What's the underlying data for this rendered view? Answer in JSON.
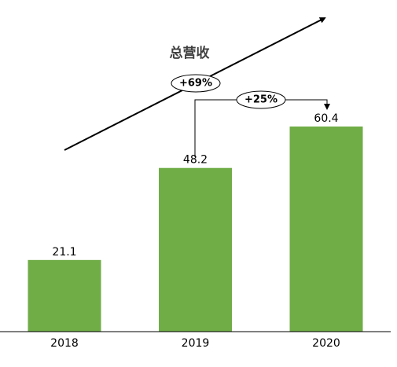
{
  "chart_data": {
    "type": "bar",
    "title": "总营收",
    "categories": [
      "2018",
      "2019",
      "2020"
    ],
    "values": [
      21.1,
      48.2,
      60.4
    ],
    "color": "#70ad47",
    "annotations": [
      "+69%",
      "+25%"
    ]
  }
}
